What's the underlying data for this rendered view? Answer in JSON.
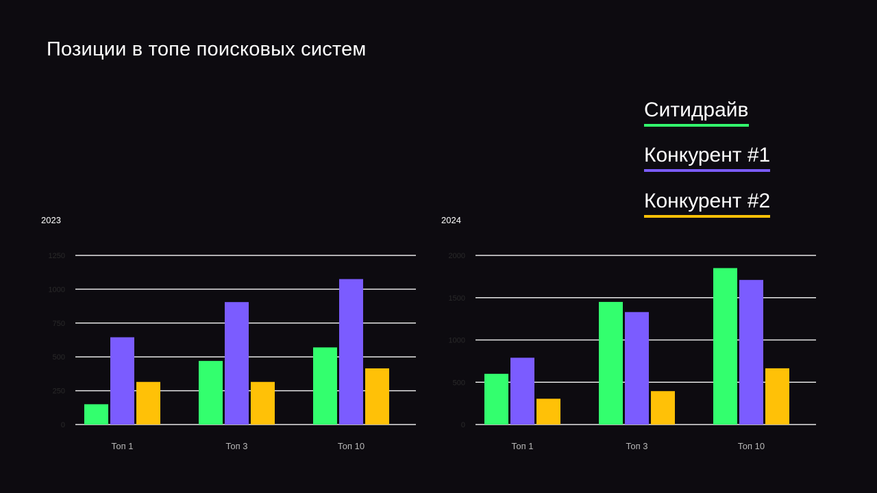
{
  "title": "Позиции в топе поисковых систем",
  "colors": {
    "background": "#0d0b10",
    "series": [
      "#33ff6e",
      "#7b5cff",
      "#ffc107"
    ]
  },
  "legend": [
    {
      "label": "Ситидрайв",
      "color": "#33ff6e"
    },
    {
      "label": "Конкурент #1",
      "color": "#7b5cff"
    },
    {
      "label": "Конкурент #2",
      "color": "#ffc107"
    }
  ],
  "chart_data": [
    {
      "type": "bar",
      "title": "2023",
      "categories": [
        "Топ 1",
        "Топ 3",
        "Топ 10"
      ],
      "ylim": [
        0,
        1250
      ],
      "yticks": [
        0,
        250,
        500,
        750,
        1000,
        1250
      ],
      "grid": true,
      "series": [
        {
          "name": "Ситидрайв",
          "values": [
            150,
            470,
            570
          ]
        },
        {
          "name": "Конкурент #1",
          "values": [
            645,
            905,
            1075
          ]
        },
        {
          "name": "Конкурент #2",
          "values": [
            315,
            315,
            415
          ]
        }
      ]
    },
    {
      "type": "bar",
      "title": "2024",
      "categories": [
        "Топ 1",
        "Топ 3",
        "Топ 10"
      ],
      "ylim": [
        0,
        2000
      ],
      "yticks": [
        0,
        500,
        1000,
        1500,
        2000
      ],
      "grid": true,
      "series": [
        {
          "name": "Ситидрайв",
          "values": [
            600,
            1450,
            1850
          ]
        },
        {
          "name": "Конкурент #1",
          "values": [
            790,
            1330,
            1710
          ]
        },
        {
          "name": "Конкурент #2",
          "values": [
            305,
            395,
            665
          ]
        }
      ]
    }
  ]
}
